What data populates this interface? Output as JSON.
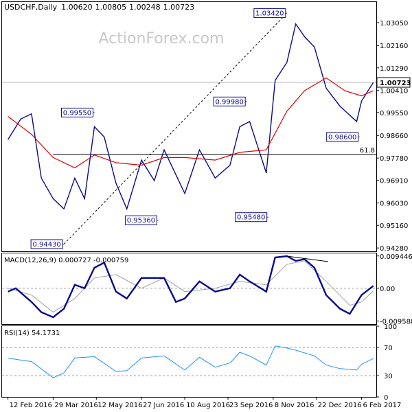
{
  "chart_data": {
    "type": "line",
    "header": {
      "symbol": "USDCHF,Daily",
      "open": "1.00620",
      "high": "1.00805",
      "low": "1.00248",
      "close": "1.00723"
    },
    "watermark": "ActionForex.com",
    "price_panel": {
      "ylim": [
        0.9415,
        1.0385
      ],
      "yticks": [
        "1.03050",
        "1.02160",
        "1.01290",
        "1.00410",
        "0.99550",
        "0.98660",
        "0.97780",
        "0.96910",
        "0.96030",
        "0.95160",
        "0.94280"
      ],
      "current_price": "1.00723",
      "current_value": 1.00723,
      "fib_label": "61.8",
      "fib_level": 0.9792,
      "fib_range": [
        "29 Mar 2016",
        "1 Jan 2017"
      ],
      "price_labels": [
        {
          "text": "0.94430",
          "date": "9 Apr 2016",
          "value": 0.9443,
          "side": "left"
        },
        {
          "text": "0.99550",
          "date": "10 May 2016",
          "value": 0.9955,
          "side": "left"
        },
        {
          "text": "0.95360",
          "date": "14 Jul 2016",
          "value": 0.9536,
          "side": "left"
        },
        {
          "text": "0.99980",
          "date": "12 Oct 2016",
          "value": 0.9998,
          "side": "left"
        },
        {
          "text": "0.95480",
          "date": "3 Nov 2016",
          "value": 0.9548,
          "side": "left"
        },
        {
          "text": "1.03420",
          "date": "22 Nov 2016",
          "value": 1.0342,
          "side": "left"
        },
        {
          "text": "0.98600",
          "date": "4 Feb 2017",
          "value": 0.986,
          "side": "left"
        }
      ],
      "trendline": {
        "from": [
          "9 Apr 2016",
          0.9443
        ],
        "to": [
          "22 Nov 2016",
          1.0342
        ]
      },
      "close_series": [
        [
          "12 Feb 2016",
          0.985
        ],
        [
          "25 Feb 2016",
          0.993
        ],
        [
          "7 Mar 2016",
          0.995
        ],
        [
          "17 Mar 2016",
          0.97
        ],
        [
          "29 Mar 2016",
          0.962
        ],
        [
          "9 Apr 2016",
          0.958
        ],
        [
          "20 Apr 2016",
          0.97
        ],
        [
          "30 Apr 2016",
          0.962
        ],
        [
          "10 May 2016",
          0.99
        ],
        [
          "20 May 2016",
          0.986
        ],
        [
          "1 Jun 2016",
          0.968
        ],
        [
          "12 Jun 2016",
          0.958
        ],
        [
          "27 Jun 2016",
          0.977
        ],
        [
          "10 Jul 2016",
          0.969
        ],
        [
          "20 Jul 2016",
          0.981
        ],
        [
          "10 Aug 2016",
          0.964
        ],
        [
          "25 Aug 2016",
          0.981
        ],
        [
          "10 Sep 2016",
          0.97
        ],
        [
          "25 Sep 2016",
          0.975
        ],
        [
          "5 Oct 2016",
          0.99
        ],
        [
          "15 Oct 2016",
          0.992
        ],
        [
          "1 Nov 2016",
          0.972
        ],
        [
          "10 Nov 2016",
          1.008
        ],
        [
          "22 Nov 2016",
          1.015
        ],
        [
          "1 Dec 2016",
          1.03
        ],
        [
          "10 Dec 2016",
          1.025
        ],
        [
          "20 Dec 2016",
          1.021
        ],
        [
          "1 Jan 2017",
          1.005
        ],
        [
          "15 Jan 2017",
          0.998
        ],
        [
          "1 Feb 2017",
          0.992
        ],
        [
          "6 Feb 2017",
          1.0
        ],
        [
          "18 Feb 2017",
          1.0072
        ]
      ],
      "ma_series": [
        [
          "12 Feb 2016",
          0.994
        ],
        [
          "7 Mar 2016",
          0.987
        ],
        [
          "29 Mar 2016",
          0.978
        ],
        [
          "20 Apr 2016",
          0.974
        ],
        [
          "10 May 2016",
          0.979
        ],
        [
          "1 Jun 2016",
          0.976
        ],
        [
          "27 Jun 2016",
          0.975
        ],
        [
          "20 Jul 2016",
          0.978
        ],
        [
          "10 Aug 2016",
          0.978
        ],
        [
          "10 Sep 2016",
          0.977
        ],
        [
          "5 Oct 2016",
          0.98
        ],
        [
          "1 Nov 2016",
          0.981
        ],
        [
          "22 Nov 2016",
          0.996
        ],
        [
          "10 Dec 2016",
          1.004
        ],
        [
          "1 Jan 2017",
          1.009
        ],
        [
          "20 Jan 2017",
          1.004
        ],
        [
          "6 Feb 2017",
          1.002
        ],
        [
          "18 Feb 2017",
          1.004
        ]
      ]
    },
    "macd_panel": {
      "label": "MACD(12,26,9) 0.000727 -0.000759",
      "ylim": [
        -0.0105,
        0.0102
      ],
      "yticks": [
        "0.009446",
        "0.00",
        "-0.009588"
      ],
      "macd_series": [
        [
          "12 Feb 2016",
          -0.001
        ],
        [
          "20 Feb 2016",
          0.0
        ],
        [
          "7 Mar 2016",
          -0.004
        ],
        [
          "17 Mar 2016",
          -0.007
        ],
        [
          "29 Mar 2016",
          -0.0085
        ],
        [
          "9 Apr 2016",
          -0.006
        ],
        [
          "20 Apr 2016",
          0.001
        ],
        [
          "30 Apr 2016",
          0.0
        ],
        [
          "10 May 2016",
          0.006
        ],
        [
          "20 May 2016",
          0.0075
        ],
        [
          "1 Jun 2016",
          -0.001
        ],
        [
          "12 Jun 2016",
          -0.003
        ],
        [
          "27 Jun 2016",
          0.003
        ],
        [
          "10 Jul 2016",
          0.003
        ],
        [
          "20 Jul 2016",
          0.003
        ],
        [
          "1 Aug 2016",
          -0.004
        ],
        [
          "10 Aug 2016",
          -0.003
        ],
        [
          "25 Aug 2016",
          0.002
        ],
        [
          "10 Sep 2016",
          -0.001
        ],
        [
          "25 Sep 2016",
          0.0
        ],
        [
          "5 Oct 2016",
          0.004
        ],
        [
          "15 Oct 2016",
          0.002
        ],
        [
          "1 Nov 2016",
          -0.001
        ],
        [
          "10 Nov 2016",
          0.009
        ],
        [
          "22 Nov 2016",
          0.0094
        ],
        [
          "1 Dec 2016",
          0.008
        ],
        [
          "10 Dec 2016",
          0.0085
        ],
        [
          "20 Dec 2016",
          0.006
        ],
        [
          "1 Jan 2017",
          -0.002
        ],
        [
          "15 Jan 2017",
          -0.006
        ],
        [
          "25 Jan 2017",
          -0.0075
        ],
        [
          "6 Feb 2017",
          -0.002
        ],
        [
          "18 Feb 2017",
          0.0007
        ]
      ],
      "signal_series": [
        [
          "12 Feb 2016",
          0.0
        ],
        [
          "7 Mar 2016",
          -0.002
        ],
        [
          "29 Mar 2016",
          -0.007
        ],
        [
          "20 Apr 2016",
          -0.003
        ],
        [
          "10 May 2016",
          0.003
        ],
        [
          "1 Jun 2016",
          0.004
        ],
        [
          "27 Jun 2016",
          0.0
        ],
        [
          "20 Jul 2016",
          0.003
        ],
        [
          "10 Aug 2016",
          -0.001
        ],
        [
          "10 Sep 2016",
          0.0
        ],
        [
          "5 Oct 2016",
          0.002
        ],
        [
          "1 Nov 2016",
          0.001
        ],
        [
          "22 Nov 2016",
          0.007
        ],
        [
          "10 Dec 2016",
          0.008
        ],
        [
          "1 Jan 2017",
          0.002
        ],
        [
          "25 Jan 2017",
          -0.005
        ],
        [
          "6 Feb 2017",
          -0.004
        ],
        [
          "18 Feb 2017",
          -0.0008
        ]
      ],
      "divergence_line": {
        "from": [
          "22 Nov 2016",
          0.0094
        ],
        "to": [
          "3 Jan 2017",
          0.0078
        ]
      }
    },
    "rsi_panel": {
      "label": "RSI(14) 54.1731",
      "ylim": [
        0,
        100
      ],
      "yticks": [
        "100",
        "70",
        "30",
        "0"
      ],
      "levels": [
        70,
        30
      ],
      "series": [
        [
          "12 Feb 2016",
          55
        ],
        [
          "25 Feb 2016",
          52
        ],
        [
          "7 Mar 2016",
          50
        ],
        [
          "29 Mar 2016",
          27
        ],
        [
          "9 Apr 2016",
          34
        ],
        [
          "20 Apr 2016",
          55
        ],
        [
          "10 May 2016",
          57
        ],
        [
          "1 Jun 2016",
          36
        ],
        [
          "12 Jun 2016",
          37
        ],
        [
          "27 Jun 2016",
          55
        ],
        [
          "20 Jul 2016",
          58
        ],
        [
          "10 Aug 2016",
          38
        ],
        [
          "25 Aug 2016",
          56
        ],
        [
          "10 Sep 2016",
          42
        ],
        [
          "25 Sep 2016",
          48
        ],
        [
          "5 Oct 2016",
          63
        ],
        [
          "15 Oct 2016",
          58
        ],
        [
          "1 Nov 2016",
          45
        ],
        [
          "10 Nov 2016",
          72
        ],
        [
          "22 Nov 2016",
          69
        ],
        [
          "1 Dec 2016",
          66
        ],
        [
          "20 Dec 2016",
          58
        ],
        [
          "1 Jan 2017",
          45
        ],
        [
          "15 Jan 2017",
          40
        ],
        [
          "1 Feb 2017",
          38
        ],
        [
          "6 Feb 2017",
          46
        ],
        [
          "18 Feb 2017",
          54.2
        ]
      ]
    },
    "x_axis": {
      "range": [
        "6 Feb 2016",
        "21 Feb 2017"
      ],
      "ticks": [
        {
          "label": "12 Feb 2016",
          "date": "12 Feb 2016"
        },
        {
          "label": "29 Mar 2016",
          "date": "29 Mar 2016"
        },
        {
          "label": "12 May 2016",
          "date": "12 May 2016"
        },
        {
          "label": "27 Jun 2016",
          "date": "27 Jun 2016"
        },
        {
          "label": "10 Aug 2016",
          "date": "10 Aug 2016"
        },
        {
          "label": "23 Sep 2016",
          "date": "23 Sep 2016"
        },
        {
          "label": "8 Nov 2016",
          "date": "8 Nov 2016"
        },
        {
          "label": "22 Dec 2016",
          "date": "22 Dec 2016"
        },
        {
          "label": "6 Feb 2017",
          "date": "6 Feb 2017"
        }
      ]
    },
    "colors": {
      "price": "#0a0a8c",
      "ma": "#e00000",
      "macd": "#0a0a8c",
      "signal": "#a0a0a0",
      "rsi": "#1e90ff",
      "label_border": "#0a0a8c"
    }
  }
}
